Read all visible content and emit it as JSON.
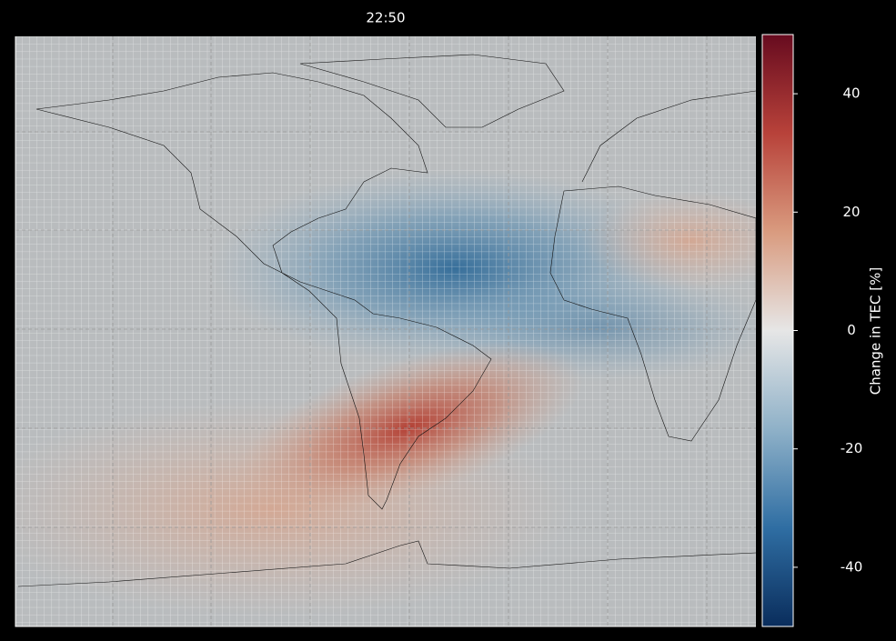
{
  "title": "22:50",
  "colorbar": {
    "label": "Change in TEC [%]",
    "lim": [
      -50,
      50
    ],
    "ticks": [
      -40,
      -20,
      0,
      20,
      40
    ],
    "colors": [
      "#0a2d5c",
      "#2f6ea3",
      "#8fb1c8",
      "#e6e6e6",
      "#d99b7f",
      "#b8423a",
      "#670b1f"
    ]
  }
}
